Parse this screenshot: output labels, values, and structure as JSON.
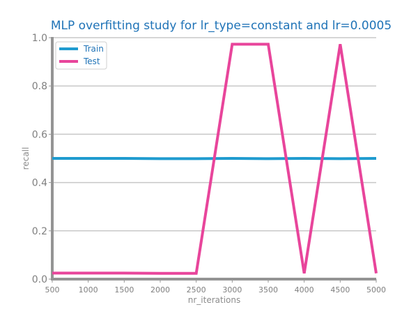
{
  "chart_data": {
    "type": "line",
    "title": "MLP overfitting study for lr_type=constant and lr=0.0005",
    "xlabel": "nr_iterations",
    "ylabel": "recall",
    "xlim": [
      500,
      5000
    ],
    "ylim": [
      0.0,
      1.0
    ],
    "x_ticks": [
      500,
      1000,
      1500,
      2000,
      2500,
      3000,
      3500,
      4000,
      4500,
      5000
    ],
    "y_ticks": [
      0.0,
      0.2,
      0.4,
      0.6,
      0.8,
      1.0
    ],
    "y_tick_labels": [
      "0.0",
      "0.2",
      "0.4",
      "0.6",
      "0.8",
      "1.0"
    ],
    "grid": "horizontal",
    "legend": "top-left",
    "x": [
      500,
      1000,
      1500,
      2000,
      2500,
      3000,
      3500,
      4000,
      4500,
      5000
    ],
    "series": [
      {
        "name": "Train",
        "color": "#1f9bcf",
        "values": [
          0.5,
          0.5,
          0.5,
          0.499,
          0.499,
          0.5,
          0.499,
          0.5,
          0.499,
          0.5
        ]
      },
      {
        "name": "Test",
        "color": "#e8459b",
        "values": [
          0.025,
          0.025,
          0.025,
          0.024,
          0.024,
          0.973,
          0.973,
          0.024,
          0.973,
          0.024
        ]
      }
    ],
    "colors": {
      "title": "#1f73b7",
      "grid": "#c8c8c8",
      "axis": "#949494",
      "tick_label": "#7f7f7f"
    }
  }
}
